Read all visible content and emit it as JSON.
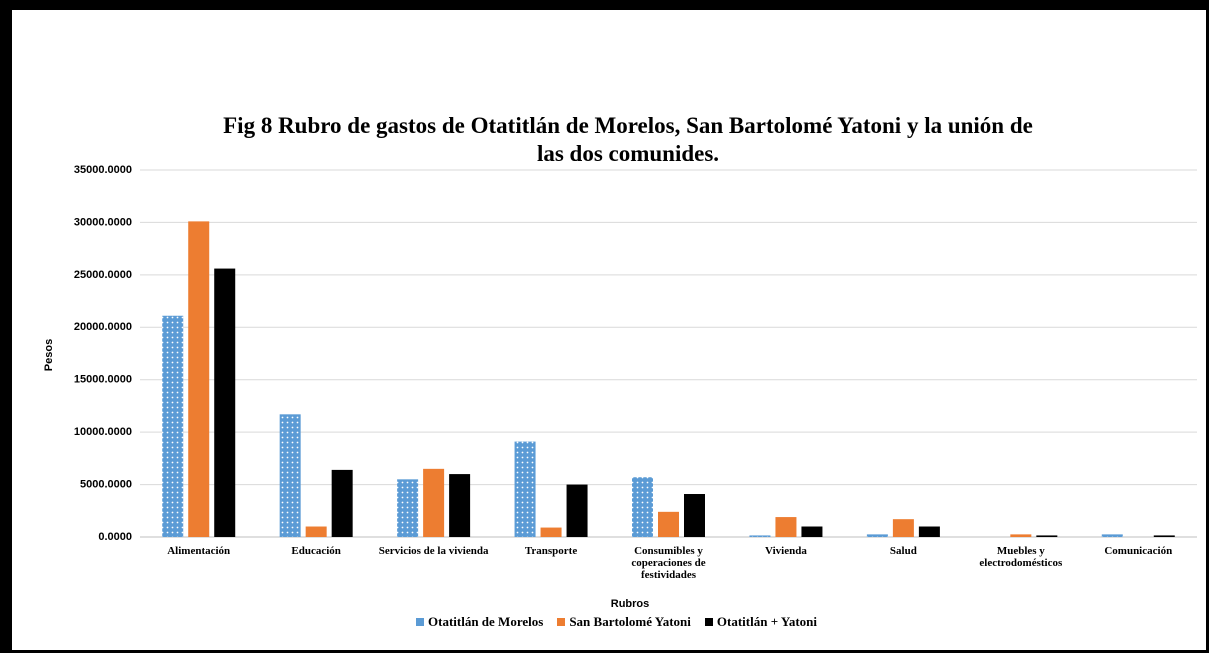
{
  "chart_data": {
    "type": "bar",
    "title": [
      "Fig 8     Rubro de gastos de Otatitlán de Morelos, San Bartolomé Yatoni y la unión de",
      "las dos comunides."
    ],
    "x_label": "Rubros",
    "y_label": "Pesos",
    "categories": [
      "Alimentación",
      "Educación",
      "Servicios de la vivienda",
      "Transporte",
      "Consumibles y coperaciones de festividades",
      "Vivienda",
      "Salud",
      "Muebles y electrodomésticos",
      "Comunicación"
    ],
    "series": [
      {
        "name": "Otatitlán de Morelos",
        "color": "#5b9bd5",
        "pattern": "dots",
        "values": [
          21100,
          11700,
          5500,
          9100,
          5700,
          150,
          250,
          0,
          250
        ]
      },
      {
        "name": "San Bartolomé Yatoni",
        "color": "#ed7d31",
        "values": [
          30100,
          1000,
          6500,
          900,
          2400,
          1900,
          1700,
          250,
          0
        ]
      },
      {
        "name": "Otatitlán + Yatoni",
        "color": "#000000",
        "values": [
          25600,
          6400,
          6000,
          5000,
          4100,
          1000,
          1000,
          150,
          150
        ]
      }
    ],
    "ylim": [
      0,
      35000
    ],
    "yticks": [
      {
        "value": 0,
        "label": "0.0000"
      },
      {
        "value": 5000,
        "label": "5000.0000"
      },
      {
        "value": 10000,
        "label": "10000.0000"
      },
      {
        "value": 15000,
        "label": "15000.0000"
      },
      {
        "value": 20000,
        "label": "20000.0000"
      },
      {
        "value": 25000,
        "label": "25000.0000"
      },
      {
        "value": 30000,
        "label": "30000.0000"
      },
      {
        "value": 35000,
        "label": "35000.0000"
      }
    ],
    "grid": true,
    "legend": "bottom"
  }
}
